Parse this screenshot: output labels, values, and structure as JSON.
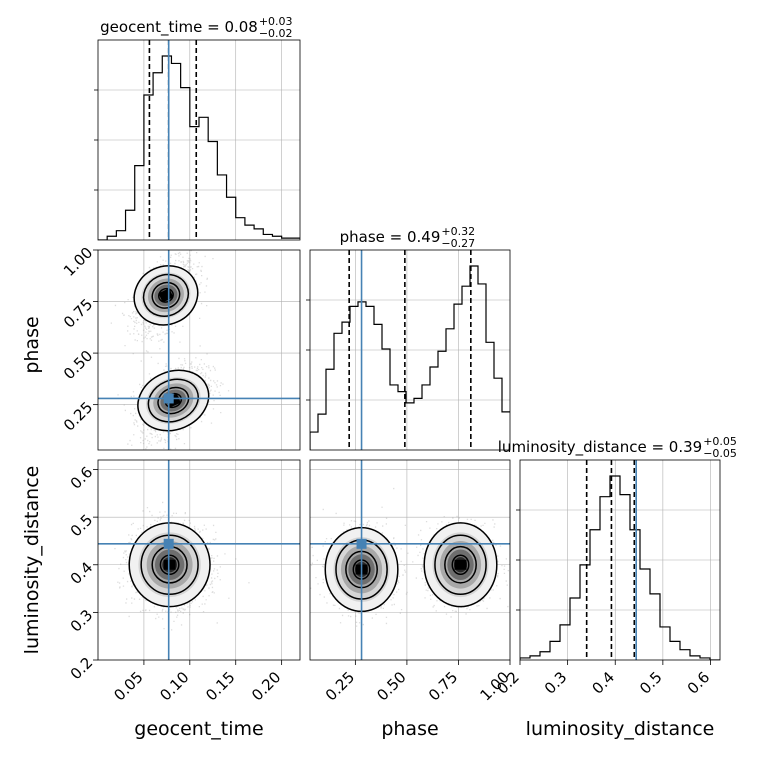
{
  "colors": {
    "truth": "#4682b4",
    "hist": "#000000",
    "grid": "#b0b0b0",
    "scatter": "#9e9e9e"
  },
  "chart_data": {
    "type": "corner",
    "parameters": [
      "geocent_time",
      "phase",
      "luminosity_distance"
    ],
    "axis_labels": [
      "geocent_time",
      "phase",
      "luminosity_distance"
    ],
    "truths": {
      "geocent_time": 0.077,
      "phase": 0.28,
      "luminosity_distance": 0.444
    },
    "ranges": {
      "geocent_time": [
        0.0,
        0.22
      ],
      "phase": [
        0.03,
        1.0
      ],
      "luminosity_distance": [
        0.2,
        0.62
      ]
    },
    "ticks": {
      "geocent_time": [
        0.05,
        0.1,
        0.15,
        0.2
      ],
      "phase": [
        0.25,
        0.5,
        0.75,
        1.0
      ],
      "luminosity_distance": [
        0.2,
        0.3,
        0.4,
        0.5,
        0.6
      ]
    },
    "tick_labels": {
      "geocent_time": [
        "0.05",
        "0.10",
        "0.15",
        "0.20"
      ],
      "phase": [
        "0.25",
        "0.50",
        "0.75",
        "1.00"
      ],
      "luminosity_distance": [
        "0.2",
        "0.3",
        "0.4",
        "0.5",
        "0.6"
      ]
    },
    "titles": [
      {
        "param": "geocent_time",
        "label": "geocent_time = 0.08",
        "plus": "+0.03",
        "minus": "−0.02"
      },
      {
        "param": "phase",
        "label": "phase = 0.49",
        "plus": "+0.32",
        "minus": "−0.27"
      },
      {
        "param": "luminosity_distance",
        "label": "luminosity_distance = 0.39",
        "plus": "+0.05",
        "minus": "−0.05"
      }
    ],
    "quantiles": {
      "geocent_time": [
        0.056,
        0.077,
        0.107
      ],
      "phase": [
        0.22,
        0.49,
        0.81
      ],
      "luminosity_distance": [
        0.34,
        0.392,
        0.44
      ]
    },
    "histograms": {
      "geocent_time": [
        0.0,
        0.02,
        0.05,
        0.16,
        0.4,
        0.78,
        0.9,
        0.99,
        0.95,
        0.82,
        0.61,
        0.66,
        0.53,
        0.35,
        0.23,
        0.12,
        0.08,
        0.06,
        0.03,
        0.02,
        0.01,
        0.01
      ],
      "phase": [
        0.08,
        0.16,
        0.36,
        0.52,
        0.57,
        0.64,
        0.66,
        0.64,
        0.56,
        0.45,
        0.29,
        0.26,
        0.21,
        0.23,
        0.29,
        0.37,
        0.44,
        0.54,
        0.65,
        0.73,
        0.82,
        0.74,
        0.48,
        0.32,
        0.17
      ],
      "luminosity_distance": [
        0.01,
        0.02,
        0.04,
        0.09,
        0.17,
        0.3,
        0.46,
        0.63,
        0.79,
        0.89,
        0.8,
        0.63,
        0.44,
        0.32,
        0.16,
        0.09,
        0.05,
        0.02,
        0.01,
        0.0
      ]
    },
    "grid": true
  }
}
